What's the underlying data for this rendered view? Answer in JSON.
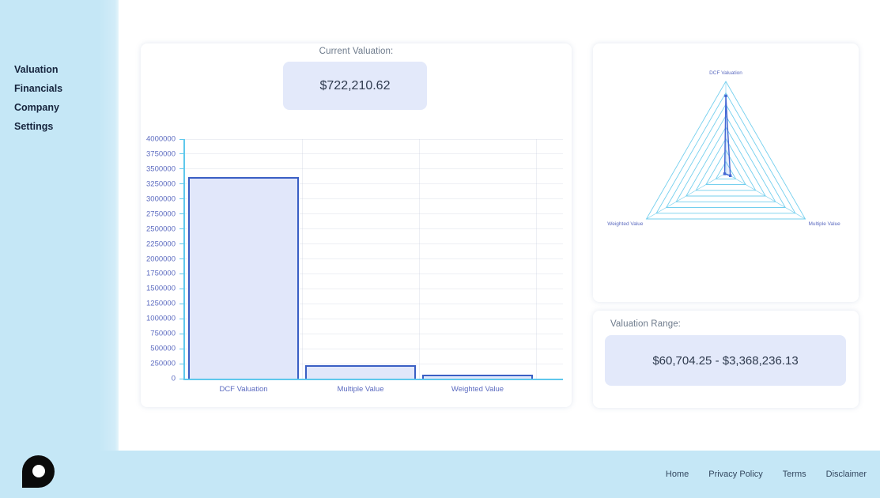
{
  "sidebar": {
    "items": [
      {
        "label": "Valuation"
      },
      {
        "label": "Financials"
      },
      {
        "label": "Company"
      },
      {
        "label": "Settings"
      }
    ]
  },
  "main": {
    "current_valuation": {
      "label": "Current Valuation:",
      "value": "$722,210.62"
    },
    "valuation_range": {
      "label": "Valuation Range:",
      "value": "$60,704.25 - $3,368,236.13"
    }
  },
  "footer": {
    "logo_icon": "speech-bubble-o-logo",
    "links": [
      {
        "label": "Home"
      },
      {
        "label": "Privacy Policy"
      },
      {
        "label": "Terms"
      },
      {
        "label": "Disclaimer"
      }
    ]
  },
  "chart_data": [
    {
      "type": "bar",
      "categories": [
        "DCF Valuation",
        "Multiple Value",
        "Weighted Value"
      ],
      "values": [
        3368236.13,
        225000,
        60704.25
      ],
      "title": "",
      "xlabel": "",
      "ylabel": "",
      "ylim": [
        0,
        4000000
      ],
      "ytick_step": 250000,
      "grid": true,
      "legend": "none"
    },
    {
      "type": "radar",
      "categories": [
        "DCF Valuation",
        "Multiple Value",
        "Weighted Value"
      ],
      "values": [
        3368236.13,
        225000,
        60704.25
      ],
      "rmax": 4000000,
      "rings": 8,
      "legend": "none"
    }
  ],
  "colors": {
    "sidebar_bg": "#c5e7f6",
    "footer_bg": "#c5e7f6",
    "card_bg": "#ffffff",
    "value_box_bg": "#e3e9fa",
    "axis_line": "#5ec8ec",
    "tick_label": "#5c6bc0",
    "bar_fill": "#e1e7fa",
    "bar_border": "#3a5fc4",
    "radar_grid": "#74cfee",
    "radar_line": "#4466d3",
    "radar_fill": "rgba(68,102,211,0.12)",
    "heading_text": "#6e7b8c",
    "value_text": "#2e3a4e",
    "nav_text": "#16243d",
    "footer_link_text": "#33475f"
  }
}
